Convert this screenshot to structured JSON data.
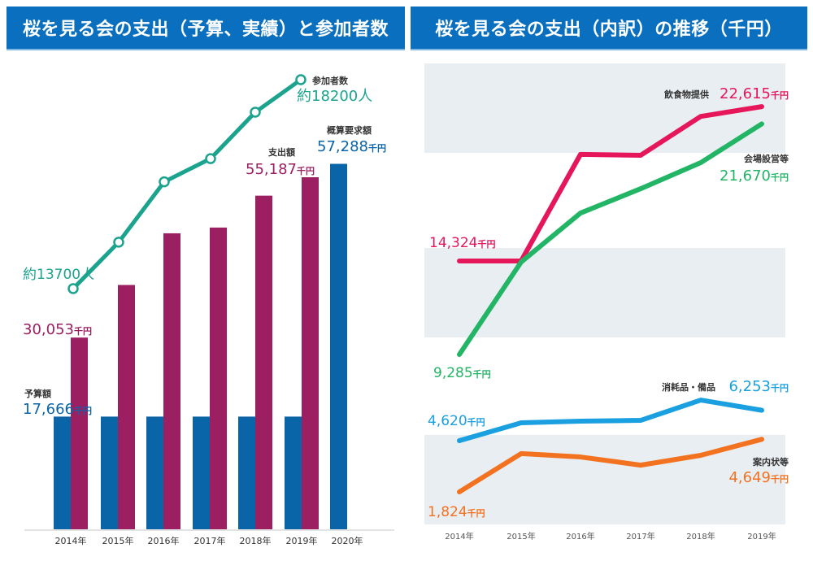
{
  "chart_data": [
    {
      "type": "bar",
      "title": "桜を見る会の支出（予算、実績）と参加者数",
      "categories": [
        "2014年",
        "2015年",
        "2016年",
        "2017年",
        "2018年",
        "2019年",
        "2020年"
      ],
      "unit": "千円",
      "series": [
        {
          "name": "予算額",
          "color": "#0a64a8",
          "values": [
            17666,
            17666,
            17666,
            17666,
            17666,
            17666,
            null
          ]
        },
        {
          "name": "支出額",
          "color": "#9c1f62",
          "values": [
            30053,
            38300,
            46400,
            47300,
            52300,
            55187,
            null
          ]
        },
        {
          "name": "概算要求額",
          "color": "#0a64a8",
          "values": [
            null,
            null,
            null,
            null,
            null,
            null,
            57288
          ]
        }
      ],
      "line_series": {
        "name": "参加者数",
        "color": "#1ba38e",
        "unit": "人",
        "values": [
          13700,
          14700,
          16000,
          16500,
          17500,
          18200,
          null
        ]
      },
      "annotations": {
        "attendees_label": "参加者数",
        "attendees_2019": "約18200人",
        "attendees_2014": "約13700人",
        "budget_label": "予算額",
        "budget_value": "17,666",
        "spend_label": "支出額",
        "spend_2019": "55,187",
        "spend_2014": "30,053",
        "request_label": "概算要求額",
        "request_2020": "57,288",
        "unit_suffix": "千円"
      },
      "ylim": [
        0,
        60000
      ],
      "grid": false
    },
    {
      "type": "line",
      "title": "桜を見る会の支出（内訳）の推移（千円）",
      "x": [
        "2014年",
        "2015年",
        "2016年",
        "2017年",
        "2018年",
        "2019年"
      ],
      "unit": "千円",
      "series": [
        {
          "name": "飲食物提供",
          "color": "#e5165a",
          "values": [
            14324,
            14324,
            20050,
            20000,
            22090,
            22615
          ],
          "start_label": "14,324",
          "end_label": "22,615"
        },
        {
          "name": "会場設営等",
          "color": "#22b565",
          "values": [
            9285,
            14250,
            16880,
            18190,
            19590,
            21670
          ],
          "start_label": "9,285",
          "end_label": "21,670"
        },
        {
          "name": "消耗品・備品",
          "color": "#1a9fe0",
          "values": [
            4620,
            5580,
            5670,
            5710,
            6800,
            6253
          ],
          "start_label": "4,620",
          "end_label": "6,253"
        },
        {
          "name": "案内状等",
          "color": "#f27220",
          "values": [
            1824,
            3880,
            3700,
            3260,
            3790,
            4649
          ],
          "start_label": "1,824",
          "end_label": "4,649"
        }
      ],
      "unit_suffix": "千円",
      "ylim": [
        0,
        25000
      ],
      "grid": "banded"
    }
  ]
}
